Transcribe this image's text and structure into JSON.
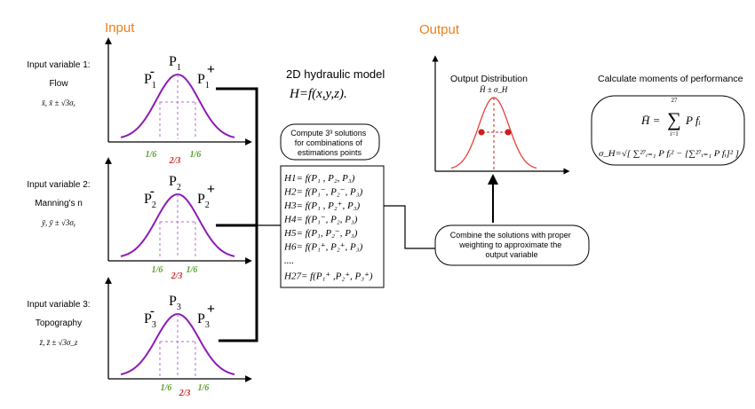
{
  "colors": {
    "heading": "#ee7f1a",
    "curve": "#8e1bb5",
    "dash": "#b06fd0",
    "label_green": "#5aa02c",
    "label_red": "#d62828",
    "output_curve": "#e8403a",
    "output_dot": "#cc1f1f",
    "axis": "#000000"
  },
  "input_heading": "Input",
  "output_heading": "Output",
  "inputs": [
    {
      "title": "Input variable 1:",
      "name": "Flow",
      "formula": "x̄, x̄ ± √3σₓ",
      "p": "P",
      "sub": "1",
      "minus": "-",
      "plus": "+",
      "w_left": "1/6",
      "w_mid": "2/3",
      "w_right": "1/6"
    },
    {
      "title": "Input variable 2:",
      "name": "Manning's n",
      "formula": "ȳ, ȳ ± √3σᵧ",
      "p": "P",
      "sub": "2",
      "minus": "-",
      "plus": "+",
      "w_left": "1/6",
      "w_mid": "2/3",
      "w_right": "1/6"
    },
    {
      "title": "Input variable 3:",
      "name": "Topography",
      "formula": "z̄, z̄ ± √3σ_z",
      "p": "P",
      "sub": "3",
      "minus": "-",
      "plus": "+",
      "w_left": "1/6",
      "w_mid": "2/3",
      "w_right": "1/6"
    }
  ],
  "model": {
    "title": "2D hydraulic model",
    "equation": "H=f(x,y,z)."
  },
  "compute_bubble": {
    "line1": "Compute 3³ solutions",
    "line2": "for combinations of",
    "line3": "estimations points"
  },
  "solutions": [
    "H1= f(P₁ , P₂,  P₃)",
    "H2= f(P₁⁻, P₂⁻, P₃)",
    "H3= f(P₁ , P₂⁺, P₃)",
    "H4= f(P₁⁻, P₂,  P₃)",
    "H5= f(P₁, P₂⁻,  P₃)",
    "H6= f(P₁⁺, P₂⁺, P₃)",
    "....",
    "H27= f(P₁⁺ ,P₂⁺, P₃⁺)"
  ],
  "combine_bubble": {
    "line1": "Combine the solutions with proper",
    "line2": "weighting to approximate the",
    "line3": "output variable"
  },
  "output": {
    "title": "Output  Distribution",
    "label": "H̄ ± σ_H"
  },
  "moments": {
    "title": "Calculate moments of performance",
    "mean_lhs": "H̄ =",
    "sum_top": "27",
    "sum_sign": "∑",
    "sum_bottom": "i=1",
    "mean_rhs": "P fᵢ",
    "sigma": "σ_H=√[ ∑²⁷ᵢ₌₁ P fᵢ² − [∑²⁷ᵢ₌₁ P fᵢ]² ]"
  }
}
